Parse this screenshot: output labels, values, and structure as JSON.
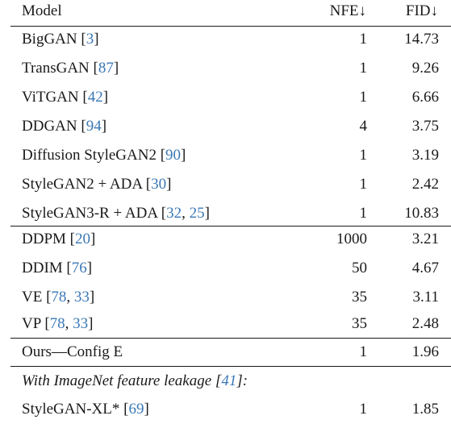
{
  "header": {
    "model": "Model",
    "nfe": "NFE↓",
    "fid": "FID↓"
  },
  "gan_rows": [
    {
      "name": "BigGAN ",
      "cites": [
        "3"
      ],
      "nfe": "1",
      "fid": "14.73"
    },
    {
      "name": "TransGAN ",
      "cites": [
        "87"
      ],
      "nfe": "1",
      "fid": "9.26"
    },
    {
      "name": "ViTGAN ",
      "cites": [
        "42"
      ],
      "nfe": "1",
      "fid": "6.66"
    },
    {
      "name": "DDGAN ",
      "cites": [
        "94"
      ],
      "nfe": "4",
      "fid": "3.75"
    },
    {
      "name": "Diffusion StyleGAN2 ",
      "cites": [
        "90"
      ],
      "nfe": "1",
      "fid": "3.19"
    },
    {
      "name": "StyleGAN2 + ADA ",
      "cites": [
        "30"
      ],
      "nfe": "1",
      "fid": "2.42"
    },
    {
      "name": "StyleGAN3-R + ADA ",
      "cites": [
        "32",
        "25"
      ],
      "nfe": "1",
      "fid": "10.83"
    }
  ],
  "diffusion_rows": [
    {
      "name": "DDPM ",
      "cites": [
        "20"
      ],
      "nfe": "1000",
      "fid": "3.21"
    },
    {
      "name": "DDIM ",
      "cites": [
        "76"
      ],
      "nfe": "50",
      "fid": "4.67"
    },
    {
      "name": "VE ",
      "cites": [
        "78",
        "33"
      ],
      "nfe": "35",
      "fid": "3.11"
    },
    {
      "name": "VP ",
      "cites": [
        "78",
        "33"
      ],
      "nfe": "35",
      "fid": "2.48"
    }
  ],
  "ours_row": {
    "name": "Ours—Config E",
    "nfe": "1",
    "fid": "1.96"
  },
  "leakage": {
    "label": "With ImageNet feature leakage ",
    "cite": "41",
    "suffix": ":"
  },
  "leakage_row": {
    "name": "StyleGAN-XL* ",
    "cites": [
      "69"
    ],
    "nfe": "1",
    "fid": "1.85"
  }
}
